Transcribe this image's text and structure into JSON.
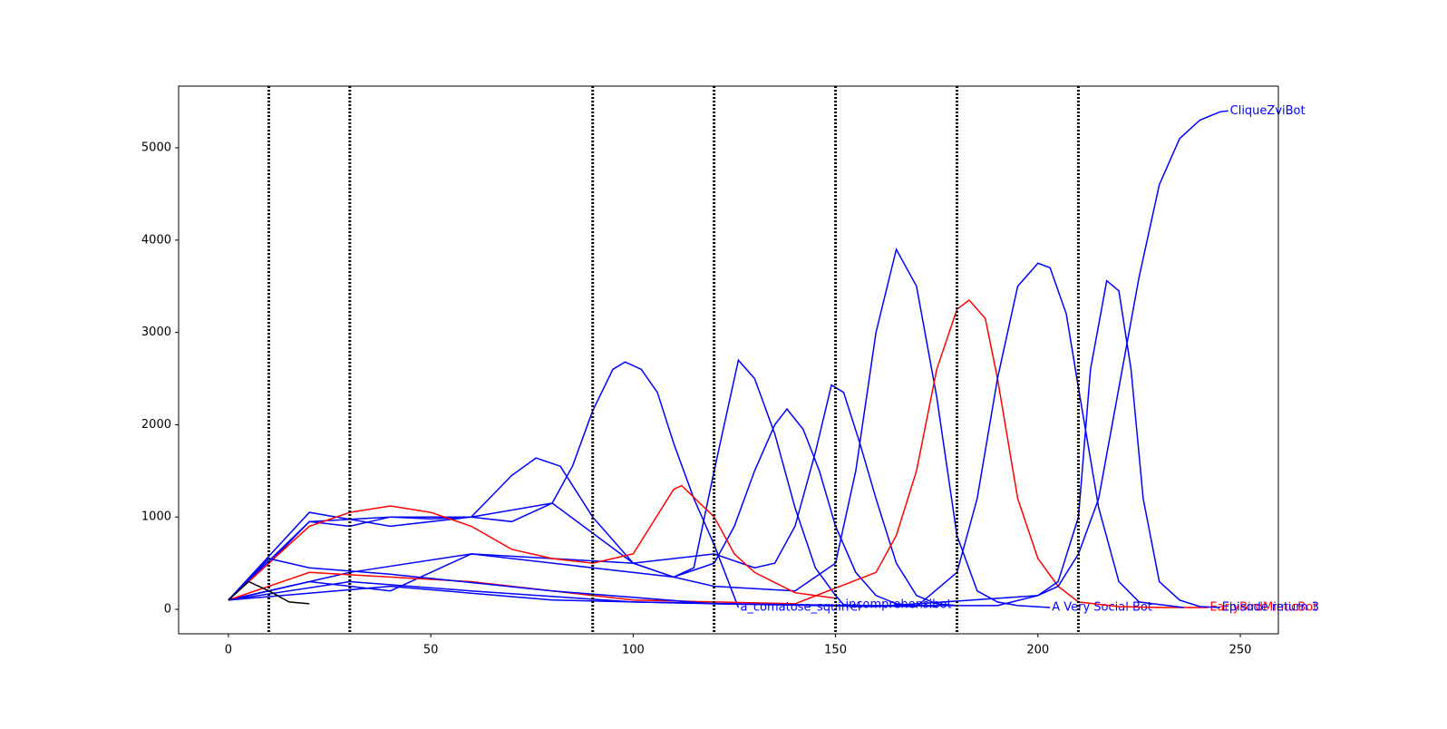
{
  "chart_data": {
    "type": "line",
    "xlim": [
      -12.3,
      259.4
    ],
    "ylim": [
      -265,
      5668
    ],
    "xticks": [
      0,
      50,
      100,
      150,
      200,
      250
    ],
    "yticks": [
      0,
      1000,
      2000,
      3000,
      4000,
      5000
    ],
    "vlines": [
      10,
      30,
      90,
      120,
      150,
      180,
      210
    ],
    "series": [
      {
        "name": "a_comatose_squirrel",
        "color": "#0000ff",
        "x": [
          0,
          10,
          20,
          30,
          40,
          50,
          60,
          70,
          80,
          85,
          90,
          95,
          98,
          102,
          106,
          110,
          115,
          120,
          126
        ],
        "values": [
          100,
          500,
          950,
          900,
          1000,
          980,
          1000,
          950,
          1150,
          1550,
          2150,
          2600,
          2680,
          2600,
          2350,
          1800,
          1200,
          700,
          20
        ]
      },
      {
        "name": "incomprehensibot",
        "color": "#0000ff",
        "x": [
          0,
          20,
          40,
          60,
          80,
          100,
          110,
          115,
          120,
          126,
          130,
          135,
          140,
          145,
          150,
          152
        ],
        "values": [
          100,
          300,
          200,
          600,
          550,
          500,
          350,
          450,
          1500,
          2700,
          2500,
          1900,
          1100,
          450,
          150,
          50
        ]
      },
      {
        "color": "#0000ff",
        "x": [
          0,
          30,
          60,
          90,
          110,
          120,
          125,
          130,
          135,
          138,
          142,
          146,
          150,
          155,
          160,
          165,
          170,
          175
        ],
        "values": [
          100,
          400,
          600,
          450,
          350,
          500,
          900,
          1500,
          2000,
          2170,
          1950,
          1500,
          900,
          400,
          150,
          60,
          40,
          30
        ]
      },
      {
        "color": "#0000ff",
        "x": [
          0,
          20,
          40,
          60,
          80,
          100,
          120,
          130,
          135,
          140,
          145,
          149,
          152,
          156,
          160,
          165,
          170,
          175,
          180
        ],
        "values": [
          100,
          950,
          1000,
          1000,
          1150,
          500,
          600,
          450,
          500,
          900,
          1700,
          2430,
          2350,
          1800,
          1200,
          500,
          150,
          60,
          40
        ]
      },
      {
        "name": "A Very Social Bot",
        "color": "#0000ff",
        "x": [
          0,
          20,
          40,
          60,
          70,
          76,
          82,
          90,
          100,
          110,
          120,
          140,
          150,
          155,
          160,
          165,
          170,
          175,
          180,
          185,
          190,
          195,
          203
        ],
        "values": [
          100,
          1050,
          900,
          1000,
          1450,
          1640,
          1550,
          1000,
          500,
          350,
          250,
          200,
          500,
          1500,
          3000,
          3900,
          3500,
          2300,
          800,
          200,
          80,
          40,
          20
        ]
      },
      {
        "color": "#ff0000",
        "x": [
          0,
          10,
          20,
          30,
          40,
          50,
          60,
          70,
          80,
          90,
          100,
          110,
          112,
          120,
          125,
          130,
          140,
          150
        ],
        "values": [
          100,
          500,
          900,
          1050,
          1120,
          1050,
          900,
          650,
          550,
          500,
          600,
          1300,
          1340,
          1000,
          600,
          400,
          180,
          120
        ]
      },
      {
        "name": "EarlyBirdMimicBot",
        "color": "#ff0000",
        "x": [
          0,
          20,
          60,
          100,
          140,
          160,
          165,
          170,
          175,
          180,
          183,
          187,
          190,
          195,
          200,
          205,
          210,
          220,
          230,
          242
        ],
        "values": [
          100,
          400,
          300,
          100,
          60,
          400,
          800,
          1500,
          2600,
          3250,
          3350,
          3150,
          2500,
          1200,
          550,
          250,
          80,
          30,
          20,
          20
        ]
      },
      {
        "color": "#0000ff",
        "x": [
          0,
          30,
          60,
          100,
          150,
          170,
          180,
          185,
          190,
          195,
          200,
          203,
          207,
          210,
          215,
          220,
          225,
          236
        ],
        "values": [
          100,
          300,
          200,
          80,
          40,
          30,
          400,
          1200,
          2500,
          3500,
          3750,
          3700,
          3200,
          2400,
          1100,
          300,
          80,
          20
        ]
      },
      {
        "name": "Episode return 3",
        "color": "#0000ff",
        "x": [
          0,
          40,
          80,
          120,
          160,
          190,
          200,
          205,
          210,
          213,
          217,
          220,
          223,
          226,
          230,
          235,
          240,
          245
        ],
        "values": [
          100,
          250,
          100,
          60,
          40,
          40,
          150,
          300,
          1000,
          2600,
          3560,
          3450,
          2600,
          1200,
          300,
          100,
          30,
          20
        ]
      },
      {
        "name": "CliqueZviBot",
        "color": "#0000ff",
        "x": [
          0,
          10,
          20,
          40,
          80,
          120,
          160,
          200,
          205,
          210,
          215,
          220,
          225,
          230,
          235,
          240,
          245,
          247
        ],
        "values": [
          100,
          550,
          450,
          380,
          200,
          60,
          30,
          150,
          250,
          600,
          1200,
          2400,
          3600,
          4600,
          5100,
          5300,
          5390,
          5400
        ]
      },
      {
        "color": "#000000",
        "x": [
          0,
          5,
          10,
          15,
          20
        ],
        "values": [
          100,
          300,
          200,
          80,
          60
        ]
      }
    ]
  }
}
